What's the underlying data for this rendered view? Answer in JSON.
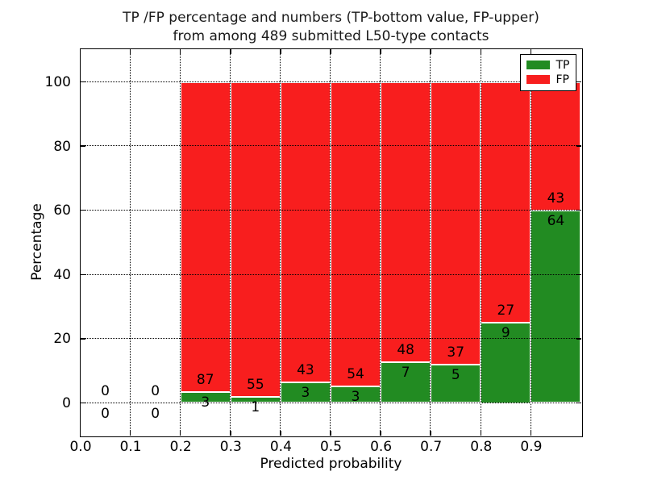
{
  "title": {
    "line1": "TP /FP percentage and numbers (TP-bottom value, FP-upper)",
    "line2": "from among 489 submitted L50-type contacts"
  },
  "chart_data": {
    "type": "bar",
    "stacked": true,
    "normalized": "each bar is TP/FP percentage of bin total; numeric labels show raw counts (TP bottom, FP upper)",
    "xlabel": "Predicted probability",
    "ylabel": "Percentage",
    "xlim": [
      0.0,
      1.0
    ],
    "ylim": [
      -10,
      110
    ],
    "xticks": [
      "0.0",
      "0.1",
      "0.2",
      "0.3",
      "0.4",
      "0.5",
      "0.6",
      "0.7",
      "0.8",
      "0.9"
    ],
    "yticks": [
      "0",
      "20",
      "40",
      "60",
      "80",
      "100"
    ],
    "grid": "dotted",
    "legend_position": "upper right",
    "series": [
      {
        "name": "TP",
        "color": "#228b22"
      },
      {
        "name": "FP",
        "color": "#f81e1e"
      }
    ],
    "bins": [
      {
        "x0": 0.0,
        "x1": 0.1,
        "tp": 0,
        "fp": 0
      },
      {
        "x0": 0.1,
        "x1": 0.2,
        "tp": 0,
        "fp": 0
      },
      {
        "x0": 0.2,
        "x1": 0.3,
        "tp": 3,
        "fp": 87
      },
      {
        "x0": 0.3,
        "x1": 0.4,
        "tp": 1,
        "fp": 55
      },
      {
        "x0": 0.4,
        "x1": 0.5,
        "tp": 3,
        "fp": 43
      },
      {
        "x0": 0.5,
        "x1": 0.6,
        "tp": 3,
        "fp": 54
      },
      {
        "x0": 0.6,
        "x1": 0.7,
        "tp": 7,
        "fp": 48
      },
      {
        "x0": 0.7,
        "x1": 0.8,
        "tp": 5,
        "fp": 37
      },
      {
        "x0": 0.8,
        "x1": 0.9,
        "tp": 9,
        "fp": 27
      },
      {
        "x0": 0.9,
        "x1": 1.0,
        "tp": 64,
        "fp": 43
      }
    ]
  }
}
